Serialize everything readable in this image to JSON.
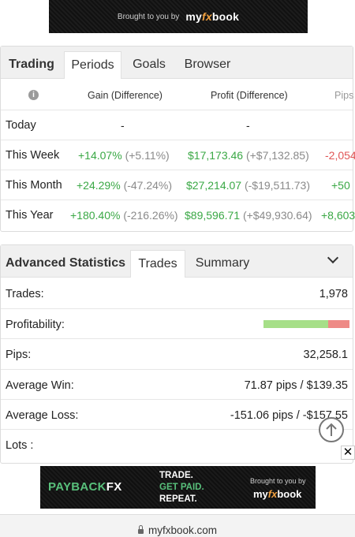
{
  "top_banner": {
    "brought": "Brought to you by",
    "brand_prefix": "my",
    "brand_fx": "fx",
    "brand_suffix": "book"
  },
  "trading": {
    "tabs": [
      "Trading",
      "Periods",
      "Goals",
      "Browser"
    ],
    "active_tab": "Periods",
    "columns": [
      "Gain (Difference)",
      "Profit (Difference)",
      "Pips"
    ],
    "rows": [
      {
        "label": "Today",
        "gain": "-",
        "gain_diff": "",
        "profit": "-",
        "profit_diff": "",
        "pips": ""
      },
      {
        "label": "This Week",
        "gain": "+14.07%",
        "gain_diff": "(+5.11%)",
        "profit": "$17,173.46",
        "profit_diff": "(+$7,132.85)",
        "pips": "-2,054"
      },
      {
        "label": "This Month",
        "gain": "+24.29%",
        "gain_diff": "(-47.24%)",
        "profit": "$27,214.07",
        "profit_diff": "(-$19,511.73)",
        "pips": "+50"
      },
      {
        "label": "This Year",
        "gain": "+180.40%",
        "gain_diff": "(-216.26%)",
        "profit": "$89,596.71",
        "profit_diff": "(+$49,930.64)",
        "pips": "+8,603"
      }
    ]
  },
  "stats": {
    "tabs": [
      "Advanced Statistics",
      "Trades",
      "Summary"
    ],
    "active_tab": "Trades",
    "rows": [
      {
        "label": "Trades:",
        "value": "1,978"
      },
      {
        "label": "Profitability:",
        "value": ""
      },
      {
        "label": "Pips:",
        "value": "32,258.1"
      },
      {
        "label": "Average Win:",
        "value": "71.87 pips / $139.35"
      },
      {
        "label": "Average Loss:",
        "value": "-151.06 pips / -$157.55"
      },
      {
        "label": "Lots :",
        "value": ""
      }
    ],
    "profitability_win_fraction": 0.75
  },
  "ad": {
    "brand_a": "PAYBACK",
    "brand_b": "FX",
    "slogan": [
      "TRADE.",
      "GET PAID.",
      "REPEAT."
    ],
    "brought": "Brought to you by",
    "brand_prefix": "my",
    "brand_fx": "fx",
    "brand_suffix": "book"
  },
  "browser": {
    "url": "myfxbook.com"
  },
  "colors": {
    "gain": "#3aa845",
    "loss": "#e05555",
    "muted": "#8a8a8a",
    "win_bar": "#a6df88",
    "loss_bar": "#ee8a86"
  }
}
